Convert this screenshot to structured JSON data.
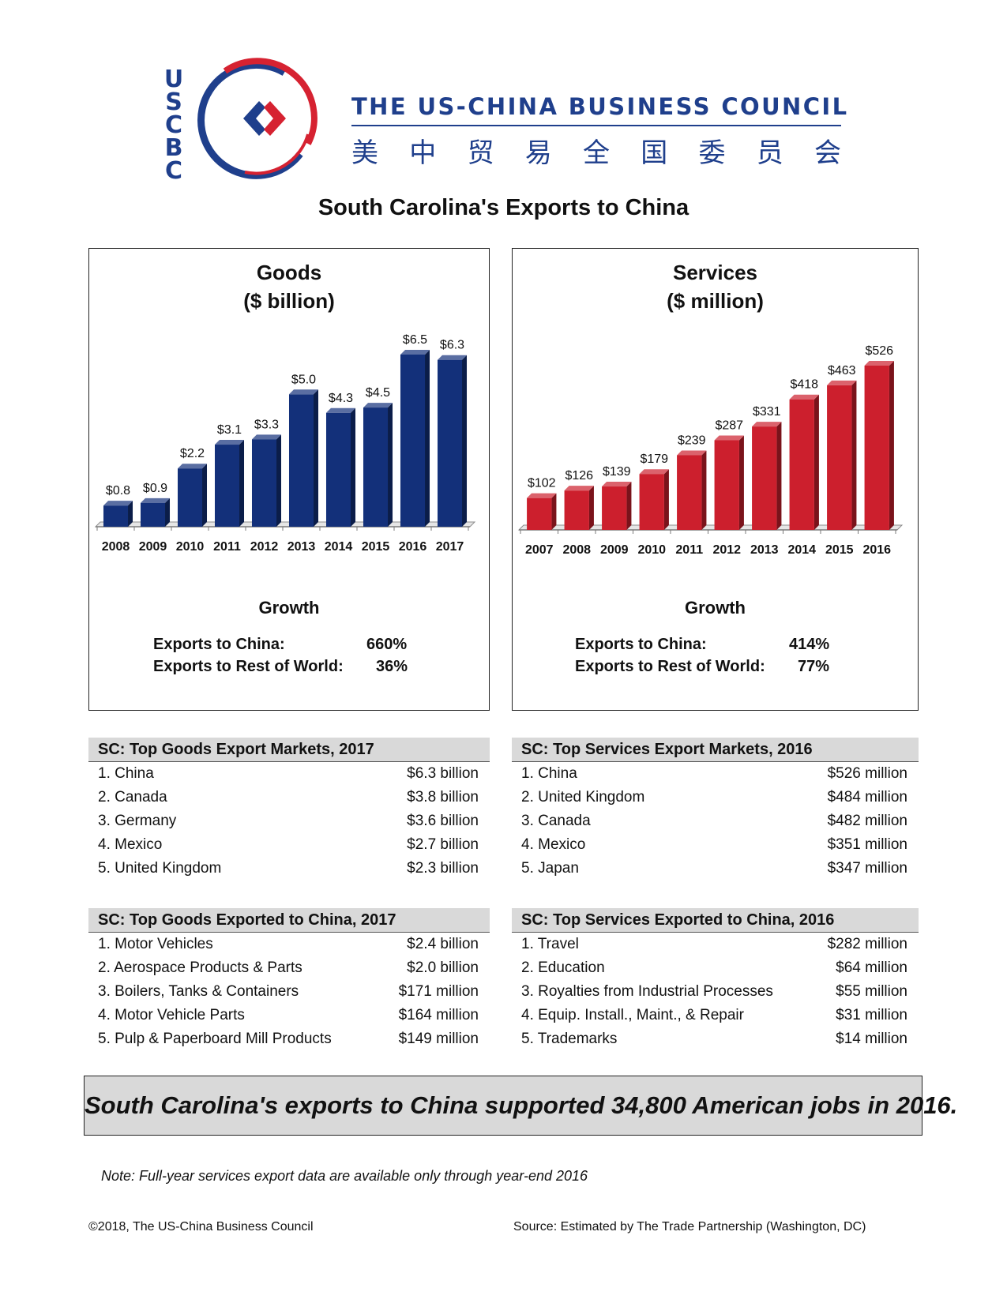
{
  "header": {
    "logo_letters": [
      "U",
      "S",
      "C",
      "B",
      "C"
    ],
    "org_name": "THE US-CHINA BUSINESS COUNCIL",
    "org_name_cn": [
      "美",
      "中",
      "贸",
      "易",
      "全",
      "国",
      "委",
      "员",
      "会"
    ],
    "brand_colors": {
      "blue": "#1f3f8c",
      "red": "#d62231"
    }
  },
  "title": "South Carolina's Exports to China",
  "panels": {
    "goods": {
      "title_line1": "Goods",
      "title_line2": "($ billion)",
      "growth_title": "Growth",
      "growth_rows": [
        {
          "label": "Exports to China:",
          "value": "660%"
        },
        {
          "label": "Exports to Rest of World:",
          "value": "36%"
        }
      ]
    },
    "services": {
      "title_line1": "Services",
      "title_line2": "($ million)",
      "growth_title": "Growth",
      "growth_rows": [
        {
          "label": "Exports to China:",
          "value": "414%"
        },
        {
          "label": "Exports to Rest of World:",
          "value": "77%"
        }
      ]
    }
  },
  "chart_data": [
    {
      "type": "bar",
      "title": "Goods ($ billion)",
      "categories": [
        "2008",
        "2009",
        "2010",
        "2011",
        "2012",
        "2013",
        "2014",
        "2015",
        "2016",
        "2017"
      ],
      "values": [
        0.8,
        0.9,
        2.2,
        3.1,
        3.3,
        5.0,
        4.3,
        4.5,
        6.5,
        6.3
      ],
      "data_labels": [
        "$0.8",
        "$0.9",
        "$2.2",
        "$3.1",
        "$3.3",
        "$5.0",
        "$4.3",
        "$4.5",
        "$6.5",
        "$6.3"
      ],
      "color": "#13307a",
      "grid": false
    },
    {
      "type": "bar",
      "title": "Services ($ million)",
      "categories": [
        "2007",
        "2008",
        "2009",
        "2010",
        "2011",
        "2012",
        "2013",
        "2014",
        "2015",
        "2016"
      ],
      "values": [
        102,
        126,
        139,
        179,
        239,
        287,
        331,
        418,
        463,
        526
      ],
      "data_labels": [
        "$102",
        "$126",
        "$139",
        "$179",
        "$239",
        "$287",
        "$331",
        "$418",
        "$463",
        "$526"
      ],
      "color": "#cc1f2d",
      "grid": false
    }
  ],
  "tables": {
    "goods_markets": {
      "header": "SC: Top Goods Export Markets, 2017",
      "rows": [
        {
          "label": "1. China",
          "value": "$6.3 billion"
        },
        {
          "label": "2. Canada",
          "value": "$3.8 billion"
        },
        {
          "label": "3. Germany",
          "value": "$3.6 billion"
        },
        {
          "label": "4. Mexico",
          "value": "$2.7 billion"
        },
        {
          "label": "5. United Kingdom",
          "value": "$2.3 billion"
        }
      ]
    },
    "services_markets": {
      "header": "SC: Top Services Export Markets, 2016",
      "rows": [
        {
          "label": "1. China",
          "value": "$526 million"
        },
        {
          "label": "2. United Kingdom",
          "value": "$484 million"
        },
        {
          "label": "3. Canada",
          "value": "$482 million"
        },
        {
          "label": "4. Mexico",
          "value": "$351 million"
        },
        {
          "label": "5. Japan",
          "value": "$347 million"
        }
      ]
    },
    "goods_to_china": {
      "header": "SC: Top Goods Exported to China, 2017",
      "rows": [
        {
          "label": "1. Motor Vehicles",
          "value": "$2.4 billion"
        },
        {
          "label": "2. Aerospace Products & Parts",
          "value": "$2.0 billion"
        },
        {
          "label": "3. Boilers, Tanks & Containers",
          "value": "$171 million"
        },
        {
          "label": "4. Motor Vehicle Parts",
          "value": "$164 million"
        },
        {
          "label": "5. Pulp & Paperboard Mill Products",
          "value": "$149 million"
        }
      ]
    },
    "services_to_china": {
      "header": "SC: Top Services Exported to China, 2016",
      "rows": [
        {
          "label": "1. Travel",
          "value": "$282 million"
        },
        {
          "label": "2. Education",
          "value": "$64 million"
        },
        {
          "label": "3. Royalties from Industrial Processes",
          "value": "$55 million"
        },
        {
          "label": "4. Equip. Install., Maint., & Repair",
          "value": "$31 million"
        },
        {
          "label": "5. Trademarks",
          "value": "$14 million"
        }
      ]
    }
  },
  "banner": "South Carolina's exports to China supported 34,800 American jobs in 2016.",
  "note": "Note: Full-year services export data are available only through year-end 2016",
  "footer": {
    "copyright": "©2018, The US-China Business Council",
    "source": "Source: Estimated by The Trade Partnership (Washington, DC)"
  }
}
